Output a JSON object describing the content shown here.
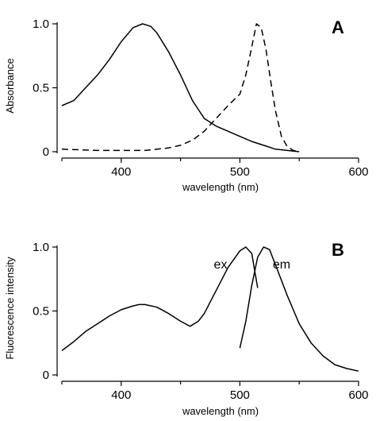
{
  "chart_data": [
    {
      "type": "line",
      "panel_label": "A",
      "xlabel": "wavelength (nm)",
      "ylabel": "Absorbance",
      "xlim": [
        350,
        600
      ],
      "ylim": [
        0,
        1.0
      ],
      "x_ticks": [
        400,
        500,
        600
      ],
      "y_ticks": [
        0,
        0.5,
        1.0
      ],
      "y_tick_labels": [
        "0",
        "0.5",
        "1.0"
      ],
      "grid": false,
      "series": [
        {
          "style": "solid",
          "x": [
            350,
            360,
            370,
            380,
            390,
            400,
            410,
            418,
            425,
            430,
            440,
            450,
            460,
            470,
            480,
            490,
            500,
            510,
            520,
            530,
            540,
            550
          ],
          "y": [
            0.36,
            0.4,
            0.5,
            0.6,
            0.72,
            0.86,
            0.97,
            1.0,
            0.98,
            0.93,
            0.78,
            0.6,
            0.4,
            0.26,
            0.2,
            0.16,
            0.12,
            0.08,
            0.05,
            0.02,
            0.01,
            0.0
          ]
        },
        {
          "style": "dashed",
          "x": [
            350,
            380,
            400,
            420,
            440,
            450,
            460,
            470,
            480,
            490,
            500,
            505,
            510,
            514,
            518,
            522,
            526,
            530,
            535,
            540,
            545,
            550
          ],
          "y": [
            0.02,
            0.01,
            0.01,
            0.01,
            0.03,
            0.05,
            0.09,
            0.16,
            0.26,
            0.36,
            0.45,
            0.6,
            0.82,
            1.0,
            0.97,
            0.8,
            0.55,
            0.32,
            0.12,
            0.04,
            0.01,
            0.0
          ]
        }
      ]
    },
    {
      "type": "line",
      "panel_label": "B",
      "xlabel": "wavelength (nm)",
      "ylabel": "Fluorescence intensity",
      "xlim": [
        350,
        600
      ],
      "ylim": [
        0,
        1.0
      ],
      "x_ticks": [
        400,
        500,
        600
      ],
      "y_ticks": [
        0,
        0.5,
        1.0
      ],
      "y_tick_labels": [
        "0",
        "0.5",
        "1.0"
      ],
      "grid": false,
      "annotations": [
        "ex",
        "em"
      ],
      "series": [
        {
          "name": "ex",
          "style": "solid",
          "x": [
            350,
            360,
            370,
            380,
            390,
            400,
            410,
            415,
            420,
            430,
            440,
            450,
            458,
            465,
            470,
            480,
            490,
            500,
            505,
            510,
            515
          ],
          "y": [
            0.19,
            0.26,
            0.34,
            0.4,
            0.46,
            0.51,
            0.54,
            0.55,
            0.55,
            0.53,
            0.48,
            0.42,
            0.38,
            0.42,
            0.48,
            0.66,
            0.84,
            0.97,
            1.0,
            0.95,
            0.68
          ]
        },
        {
          "name": "em",
          "style": "solid",
          "x": [
            500,
            505,
            510,
            515,
            520,
            525,
            530,
            540,
            550,
            560,
            570,
            580,
            590,
            600
          ],
          "y": [
            0.21,
            0.42,
            0.7,
            0.92,
            1.0,
            0.98,
            0.86,
            0.62,
            0.4,
            0.25,
            0.15,
            0.08,
            0.05,
            0.03
          ]
        }
      ]
    }
  ]
}
